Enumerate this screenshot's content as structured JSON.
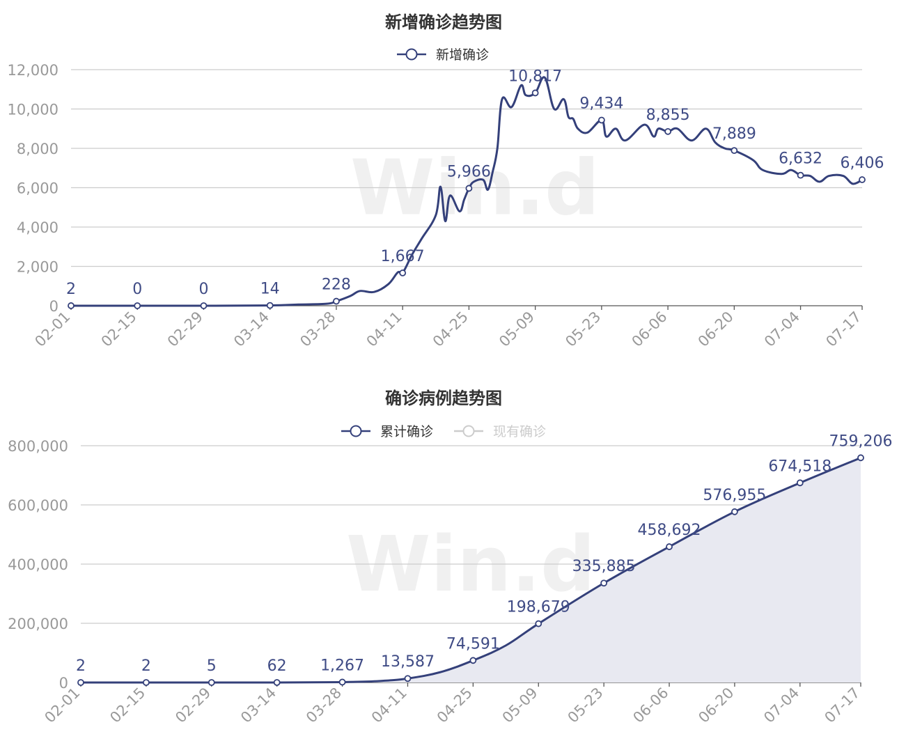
{
  "colors": {
    "series": "#34407a",
    "label": "#3f4b85",
    "area": "#e8e9f1",
    "inactive": "#cccccc"
  },
  "watermark": "Win.d",
  "chart_data": [
    {
      "type": "line",
      "title": "新增确诊趋势图",
      "legend": [
        {
          "name": "新增确诊",
          "active": true
        }
      ],
      "legend_position": "top-center",
      "ylim": [
        0,
        12000
      ],
      "yticks": [
        "0",
        "2,000",
        "4,000",
        "6,000",
        "8,000",
        "10,000",
        "12,000"
      ],
      "xticks": [
        "02-01",
        "02-15",
        "02-29",
        "03-14",
        "03-28",
        "04-11",
        "04-25",
        "05-09",
        "05-23",
        "06-06",
        "06-20",
        "07-04",
        "07-17"
      ],
      "grid": true,
      "series": [
        {
          "name": "新增确诊",
          "points": [
            [
              "02-01",
              2
            ],
            [
              "02-15",
              0
            ],
            [
              "02-29",
              0
            ],
            [
              "03-14",
              14
            ],
            [
              "03-20",
              60
            ],
            [
              "03-26",
              100
            ],
            [
              "03-28",
              228
            ],
            [
              "03-31",
              500
            ],
            [
              "04-02",
              750
            ],
            [
              "04-05",
              700
            ],
            [
              "04-08",
              1100
            ],
            [
              "04-10",
              1700
            ],
            [
              "04-11",
              1667
            ],
            [
              "04-13",
              2600
            ],
            [
              "04-15",
              3400
            ],
            [
              "04-18",
              4600
            ],
            [
              "04-19",
              6050
            ],
            [
              "04-20",
              4300
            ],
            [
              "04-21",
              5600
            ],
            [
              "04-23",
              4800
            ],
            [
              "04-24",
              5400
            ],
            [
              "04-25",
              5966
            ],
            [
              "04-26",
              6300
            ],
            [
              "04-28",
              6400
            ],
            [
              "04-29",
              5900
            ],
            [
              "04-30",
              6800
            ],
            [
              "05-01",
              8000
            ],
            [
              "05-02",
              10500
            ],
            [
              "05-04",
              10100
            ],
            [
              "05-06",
              11200
            ],
            [
              "05-07",
              10700
            ],
            [
              "05-09",
              10817
            ],
            [
              "05-11",
              11600
            ],
            [
              "05-13",
              10000
            ],
            [
              "05-15",
              10500
            ],
            [
              "05-16",
              9600
            ],
            [
              "05-17",
              9500
            ],
            [
              "05-18",
              9000
            ],
            [
              "05-20",
              8800
            ],
            [
              "05-23",
              9434
            ],
            [
              "05-24",
              8600
            ],
            [
              "05-26",
              9000
            ],
            [
              "05-28",
              8400
            ],
            [
              "06-01",
              9200
            ],
            [
              "06-03",
              8600
            ],
            [
              "06-04",
              9000
            ],
            [
              "06-06",
              8855
            ],
            [
              "06-08",
              9000
            ],
            [
              "06-11",
              8400
            ],
            [
              "06-14",
              9000
            ],
            [
              "06-16",
              8300
            ],
            [
              "06-18",
              8000
            ],
            [
              "06-20",
              7889
            ],
            [
              "06-24",
              7400
            ],
            [
              "06-26",
              6900
            ],
            [
              "06-30",
              6700
            ],
            [
              "07-02",
              6900
            ],
            [
              "07-04",
              6632
            ],
            [
              "07-06",
              6600
            ],
            [
              "07-08",
              6300
            ],
            [
              "07-10",
              6600
            ],
            [
              "07-13",
              6600
            ],
            [
              "07-15",
              6200
            ],
            [
              "07-17",
              6406
            ]
          ]
        }
      ],
      "data_labels": [
        [
          "02-01",
          "2"
        ],
        [
          "02-15",
          "0"
        ],
        [
          "02-29",
          "0"
        ],
        [
          "03-14",
          "14"
        ],
        [
          "03-28",
          "228"
        ],
        [
          "04-11",
          "1,667"
        ],
        [
          "04-25",
          "5,966"
        ],
        [
          "05-09",
          "10,817"
        ],
        [
          "05-23",
          "9,434"
        ],
        [
          "06-06",
          "8,855"
        ],
        [
          "06-20",
          "7,889"
        ],
        [
          "07-04",
          "6,632"
        ],
        [
          "07-17",
          "6,406"
        ]
      ]
    },
    {
      "type": "area",
      "title": "确诊病例趋势图",
      "legend": [
        {
          "name": "累计确诊",
          "active": true
        },
        {
          "name": "现有确诊",
          "active": false
        }
      ],
      "legend_position": "top-center",
      "ylim": [
        0,
        800000
      ],
      "yticks": [
        "0",
        "200,000",
        "400,000",
        "600,000",
        "800,000"
      ],
      "xticks": [
        "02-01",
        "02-15",
        "02-29",
        "03-14",
        "03-28",
        "04-11",
        "04-25",
        "05-09",
        "05-23",
        "06-06",
        "06-20",
        "07-04",
        "07-17"
      ],
      "grid": true,
      "series": [
        {
          "name": "累计确诊",
          "points": [
            [
              "02-01",
              2
            ],
            [
              "02-15",
              2
            ],
            [
              "02-29",
              5
            ],
            [
              "03-14",
              62
            ],
            [
              "03-28",
              1267
            ],
            [
              "04-05",
              5000
            ],
            [
              "04-11",
              13587
            ],
            [
              "04-18",
              35000
            ],
            [
              "04-25",
              74591
            ],
            [
              "05-02",
              125000
            ],
            [
              "05-09",
              198679
            ],
            [
              "05-23",
              335885
            ],
            [
              "06-06",
              458692
            ],
            [
              "06-20",
              576955
            ],
            [
              "07-04",
              674518
            ],
            [
              "07-17",
              759206
            ]
          ]
        }
      ],
      "data_labels": [
        [
          "02-01",
          "2"
        ],
        [
          "02-15",
          "2"
        ],
        [
          "02-29",
          "5"
        ],
        [
          "03-14",
          "62"
        ],
        [
          "03-28",
          "1,267"
        ],
        [
          "04-11",
          "13,587"
        ],
        [
          "04-25",
          "74,591"
        ],
        [
          "05-09",
          "198,679"
        ],
        [
          "05-23",
          "335,885"
        ],
        [
          "06-06",
          "458,692"
        ],
        [
          "06-20",
          "576,955"
        ],
        [
          "07-04",
          "674,518"
        ],
        [
          "07-17",
          "759,206"
        ]
      ]
    }
  ]
}
